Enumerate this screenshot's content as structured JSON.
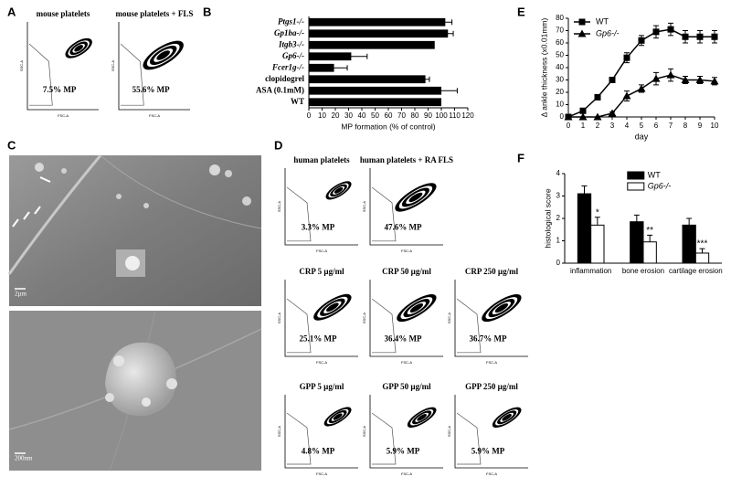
{
  "panel_labels": [
    "A",
    "B",
    "C",
    "D",
    "E",
    "F"
  ],
  "flow_axis_labels": {
    "x": "FSC-A",
    "y": "SSC-A"
  },
  "flow_plots": [
    {
      "title": "mouse platelets",
      "gate": "7.5% MP"
    },
    {
      "title": "mouse platelets + FLS",
      "gate": "55.6% MP"
    },
    {
      "title": "human platelets",
      "gate": "3.3% MP"
    },
    {
      "title": "human platelets + RA FLS",
      "gate": "47.6% MP"
    },
    {
      "title": "CRP 5 µg/ml",
      "gate": "25.1% MP"
    },
    {
      "title": "CRP 50 µg/ml",
      "gate": "36.4% MP"
    },
    {
      "title": "CRP 250 µg/ml",
      "gate": "36.7% MP"
    },
    {
      "title": "GPP 5 µg/ml",
      "gate": "4.8% MP"
    },
    {
      "title": "GPP 50 µg/ml",
      "gate": "5.9% MP"
    },
    {
      "title": "GPP 250 µg/ml",
      "gate": "5.9% MP"
    }
  ],
  "scale_bars": [
    "2µm",
    "200nm"
  ],
  "chart_data": [
    {
      "type": "bar",
      "orientation": "horizontal",
      "categories": [
        "Ptgs1-/-",
        "Gp1ba-/-",
        "Itgb3-/-",
        "Gp6-/-",
        "Fcer1g-/-",
        "clopidogrel",
        "ASA (0.1mM)",
        "WT"
      ],
      "values": [
        103,
        105,
        95,
        32,
        19,
        88,
        100,
        100
      ],
      "errors": [
        5,
        4,
        0,
        12,
        10,
        3,
        12,
        0
      ],
      "color": "#000000",
      "xlabel": "MP formation (% of control)",
      "xlim": [
        0,
        120
      ],
      "xticks": [
        0,
        10,
        20,
        30,
        40,
        50,
        60,
        70,
        80,
        90,
        100,
        110,
        120
      ]
    },
    {
      "type": "line",
      "x": [
        0,
        1,
        2,
        3,
        4,
        5,
        6,
        7,
        8,
        9,
        10
      ],
      "series": [
        {
          "name": "WT",
          "color": "#000000",
          "marker": "square",
          "values": [
            0,
            5,
            16,
            30,
            48,
            62,
            69,
            71,
            65,
            65,
            65
          ],
          "errors": [
            0,
            1,
            2,
            2,
            4,
            4,
            5,
            5,
            5,
            5,
            5
          ]
        },
        {
          "name": "Gp6-/-",
          "color": "#000000",
          "marker": "triangle",
          "values": [
            0,
            0,
            0,
            3,
            17,
            23,
            31,
            34,
            30,
            30,
            29
          ],
          "errors": [
            0,
            0,
            0,
            1,
            4,
            3,
            5,
            5,
            3,
            3,
            3
          ]
        }
      ],
      "xlabel": "day",
      "ylabel": "Δ ankle thickness (x0.01mm)",
      "xlim": [
        0,
        10
      ],
      "xticks": [
        0,
        1,
        2,
        3,
        4,
        5,
        6,
        7,
        8,
        9,
        10
      ],
      "ylim": [
        0,
        80
      ],
      "yticks": [
        0,
        10,
        20,
        30,
        40,
        50,
        60,
        70,
        80
      ]
    },
    {
      "type": "bar",
      "categories": [
        "inflammation",
        "bone erosion",
        "cartilage erosion"
      ],
      "series": [
        {
          "name": "WT",
          "color": "#000000",
          "values": [
            3.1,
            1.85,
            1.7
          ],
          "errors": [
            0.35,
            0.3,
            0.3
          ]
        },
        {
          "name": "Gp6-/-",
          "color": "#ffffff",
          "values": [
            1.7,
            0.95,
            0.45
          ],
          "errors": [
            0.35,
            0.3,
            0.2
          ]
        }
      ],
      "annotations": [
        "*",
        "**",
        "***"
      ],
      "ylabel": "histological score",
      "ylim": [
        0,
        4
      ],
      "yticks": [
        0,
        1,
        2,
        3,
        4
      ]
    }
  ]
}
